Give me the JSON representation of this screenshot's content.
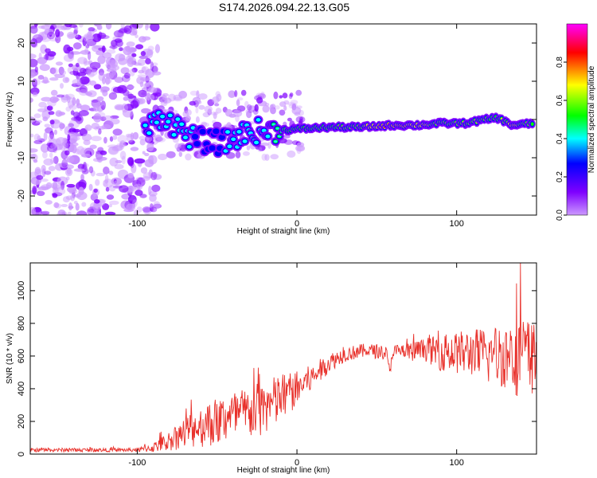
{
  "title": "S174.2026.094.22.13.G05",
  "chart_data": [
    {
      "type": "heatmap",
      "title": "",
      "xlabel": "Height of straight line (km)",
      "ylabel": "Frequency (Hz)",
      "xlim": [
        -167,
        150
      ],
      "ylim": [
        -25,
        25
      ],
      "x_ticks": [
        -100,
        0,
        100
      ],
      "y_ticks": [
        -20,
        -10,
        0,
        10,
        20
      ],
      "colorbar": {
        "label": "Normalized spectral amplitude",
        "range": [
          0,
          1
        ],
        "ticks": [
          "0.0",
          "0.2",
          "0.4",
          "0.6",
          "0.8"
        ],
        "colors": [
          "#cc99ff",
          "#7f00ff",
          "#0000ff",
          "#00ffff",
          "#00ff00",
          "#ffff00",
          "#ff0000",
          "#ff00ff"
        ]
      },
      "ridge": [
        {
          "x": -95,
          "f": -3,
          "amp": 0.4
        },
        {
          "x": -85,
          "f": 1,
          "amp": 0.3
        },
        {
          "x": -75,
          "f": -2,
          "amp": 0.35
        },
        {
          "x": -65,
          "f": -5,
          "amp": 0.3
        },
        {
          "x": -55,
          "f": -6,
          "amp": 0.25
        },
        {
          "x": -45,
          "f": -6,
          "amp": 0.3
        },
        {
          "x": -35,
          "f": -4,
          "amp": 0.35
        },
        {
          "x": -25,
          "f": -3,
          "amp": 0.4
        },
        {
          "x": -15,
          "f": -3,
          "amp": 0.55
        },
        {
          "x": 0,
          "f": -2.5,
          "amp": 0.6
        },
        {
          "x": 20,
          "f": -2,
          "amp": 0.7
        },
        {
          "x": 40,
          "f": -2,
          "amp": 0.75
        },
        {
          "x": 60,
          "f": -1.5,
          "amp": 0.95
        },
        {
          "x": 75,
          "f": -1.5,
          "amp": 0.8
        },
        {
          "x": 90,
          "f": -1,
          "amp": 0.75
        },
        {
          "x": 105,
          "f": -1,
          "amp": 0.75
        },
        {
          "x": 125,
          "f": 0.5,
          "amp": 0.7
        },
        {
          "x": 135,
          "f": -1.5,
          "amp": 0.8
        },
        {
          "x": 148,
          "f": -1,
          "amp": 0.7
        }
      ]
    },
    {
      "type": "line",
      "title": "",
      "xlabel": "Height of straight line (km)",
      "ylabel": "SNR (10 * v/v)",
      "xlim": [
        -167,
        150
      ],
      "ylim": [
        0,
        1170
      ],
      "x_ticks": [
        -100,
        0,
        100
      ],
      "y_ticks": [
        0,
        200,
        400,
        600,
        800,
        1000
      ],
      "color": "#e8302a",
      "envelope": [
        {
          "x": -167,
          "mean": 25,
          "amp": 12
        },
        {
          "x": -100,
          "mean": 25,
          "amp": 12
        },
        {
          "x": -90,
          "mean": 40,
          "amp": 30
        },
        {
          "x": -80,
          "mean": 80,
          "amp": 60
        },
        {
          "x": -70,
          "mean": 130,
          "amp": 100
        },
        {
          "x": -60,
          "mean": 170,
          "amp": 130
        },
        {
          "x": -50,
          "mean": 200,
          "amp": 150
        },
        {
          "x": -40,
          "mean": 230,
          "amp": 160
        },
        {
          "x": -30,
          "mean": 250,
          "amp": 170
        },
        {
          "x": -20,
          "mean": 280,
          "amp": 170
        },
        {
          "x": -10,
          "mean": 340,
          "amp": 160
        },
        {
          "x": 0,
          "mean": 400,
          "amp": 110
        },
        {
          "x": 10,
          "mean": 470,
          "amp": 80
        },
        {
          "x": 20,
          "mean": 560,
          "amp": 60
        },
        {
          "x": 30,
          "mean": 610,
          "amp": 45
        },
        {
          "x": 40,
          "mean": 630,
          "amp": 45
        },
        {
          "x": 50,
          "mean": 630,
          "amp": 45
        },
        {
          "x": 56,
          "mean": 620,
          "amp": 40
        },
        {
          "x": 58,
          "mean": 500,
          "amp": 40
        },
        {
          "x": 60,
          "mean": 630,
          "amp": 40
        },
        {
          "x": 70,
          "mean": 620,
          "amp": 60
        },
        {
          "x": 80,
          "mean": 640,
          "amp": 70
        },
        {
          "x": 90,
          "mean": 620,
          "amp": 110
        },
        {
          "x": 100,
          "mean": 620,
          "amp": 130
        },
        {
          "x": 110,
          "mean": 620,
          "amp": 150
        },
        {
          "x": 120,
          "mean": 600,
          "amp": 180
        },
        {
          "x": 130,
          "mean": 610,
          "amp": 210
        },
        {
          "x": 140,
          "mean": 600,
          "amp": 260
        },
        {
          "x": 150,
          "mean": 580,
          "amp": 220
        }
      ],
      "peak": {
        "x": 140,
        "y": 1170
      }
    }
  ]
}
